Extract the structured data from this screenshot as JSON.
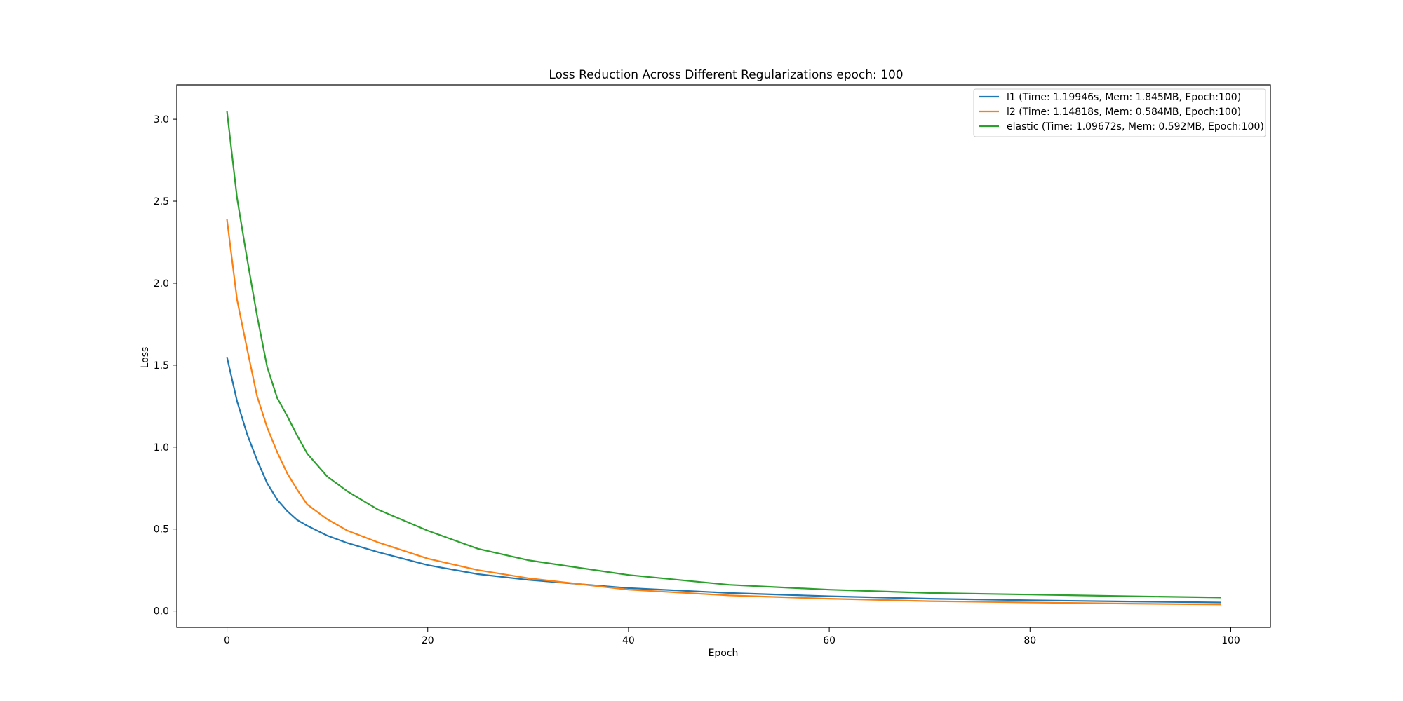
{
  "chart_data": {
    "type": "line",
    "title": "Loss Reduction Across Different Regularizations epoch: 100",
    "xlabel": "Epoch",
    "ylabel": "Loss",
    "xlim": [
      -5,
      103.95
    ],
    "ylim": [
      -0.1,
      3.21
    ],
    "xticks": [
      0,
      20,
      40,
      60,
      80,
      100
    ],
    "yticks": [
      0.0,
      0.5,
      1.0,
      1.5,
      2.0,
      2.5,
      3.0
    ],
    "grid": false,
    "legend_position": "top-right",
    "x": [
      0,
      1,
      2,
      3,
      4,
      5,
      6,
      7,
      8,
      10,
      12,
      15,
      20,
      25,
      30,
      40,
      50,
      60,
      70,
      80,
      90,
      99
    ],
    "series": [
      {
        "name": "l1 (Time: 1.19946s, Mem: 1.845MB, Epoch:100)",
        "color": "#1f77b4",
        "values": [
          1.55,
          1.28,
          1.08,
          0.92,
          0.78,
          0.68,
          0.61,
          0.555,
          0.52,
          0.46,
          0.415,
          0.36,
          0.28,
          0.225,
          0.19,
          0.14,
          0.11,
          0.09,
          0.075,
          0.065,
          0.058,
          0.052
        ]
      },
      {
        "name": "l2 (Time: 1.14818s, Mem: 0.584MB, Epoch:100)",
        "color": "#ff7f0e",
        "values": [
          2.39,
          1.9,
          1.6,
          1.31,
          1.12,
          0.97,
          0.84,
          0.74,
          0.65,
          0.56,
          0.49,
          0.42,
          0.32,
          0.25,
          0.2,
          0.13,
          0.095,
          0.075,
          0.06,
          0.052,
          0.045,
          0.04
        ]
      },
      {
        "name": "elastic (Time: 1.09672s, Mem: 0.592MB, Epoch:100)",
        "color": "#2ca02c",
        "values": [
          3.05,
          2.52,
          2.15,
          1.8,
          1.49,
          1.3,
          1.19,
          1.07,
          0.96,
          0.82,
          0.73,
          0.62,
          0.49,
          0.38,
          0.31,
          0.22,
          0.16,
          0.13,
          0.11,
          0.1,
          0.09,
          0.082
        ]
      }
    ]
  }
}
